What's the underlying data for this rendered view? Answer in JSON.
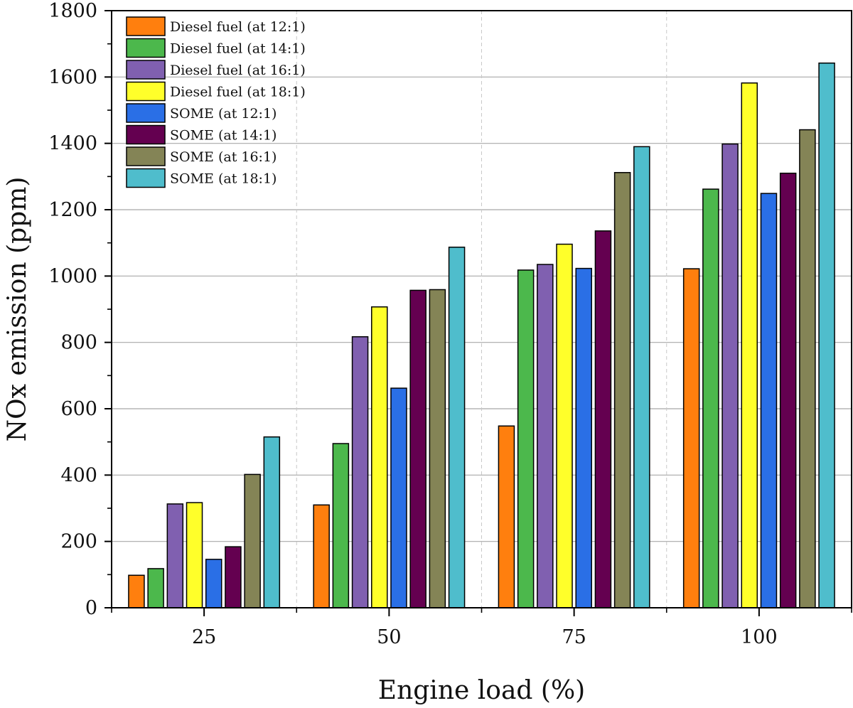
{
  "chart_data": {
    "type": "bar",
    "title": "",
    "xlabel": "Engine load (%)",
    "ylabel": "NOx emission (ppm)",
    "categories": [
      "25",
      "50",
      "75",
      "100"
    ],
    "ylim": [
      0,
      1800
    ],
    "yticks": [
      0,
      200,
      400,
      600,
      800,
      1000,
      1200,
      1400,
      1600,
      1800
    ],
    "grid": "horizontal major lines; dashed vertical separators between groups",
    "legend_position": "top-left",
    "series": [
      {
        "name": "Diesel fuel (at 12:1)",
        "color": "#FF7F0E",
        "values": [
          98,
          310,
          548,
          1022
        ]
      },
      {
        "name": "Diesel fuel (at 14:1)",
        "color": "#4CB84C",
        "values": [
          118,
          495,
          1018,
          1262
        ]
      },
      {
        "name": "Diesel fuel (at 16:1)",
        "color": "#8060B0",
        "values": [
          313,
          817,
          1035,
          1398
        ]
      },
      {
        "name": "Diesel fuel (at 18:1)",
        "color": "#FFFF2A",
        "values": [
          317,
          907,
          1096,
          1582
        ]
      },
      {
        "name": "SOME (at 12:1)",
        "color": "#2A6FE6",
        "values": [
          146,
          662,
          1023,
          1249
        ]
      },
      {
        "name": "SOME (at 14:1)",
        "color": "#640050",
        "values": [
          184,
          957,
          1136,
          1310
        ]
      },
      {
        "name": "SOME (at 16:1)",
        "color": "#848456",
        "values": [
          402,
          959,
          1312,
          1441
        ]
      },
      {
        "name": "SOME (at 18:1)",
        "color": "#4FBDCC",
        "values": [
          515,
          1087,
          1390,
          1642
        ]
      }
    ]
  }
}
